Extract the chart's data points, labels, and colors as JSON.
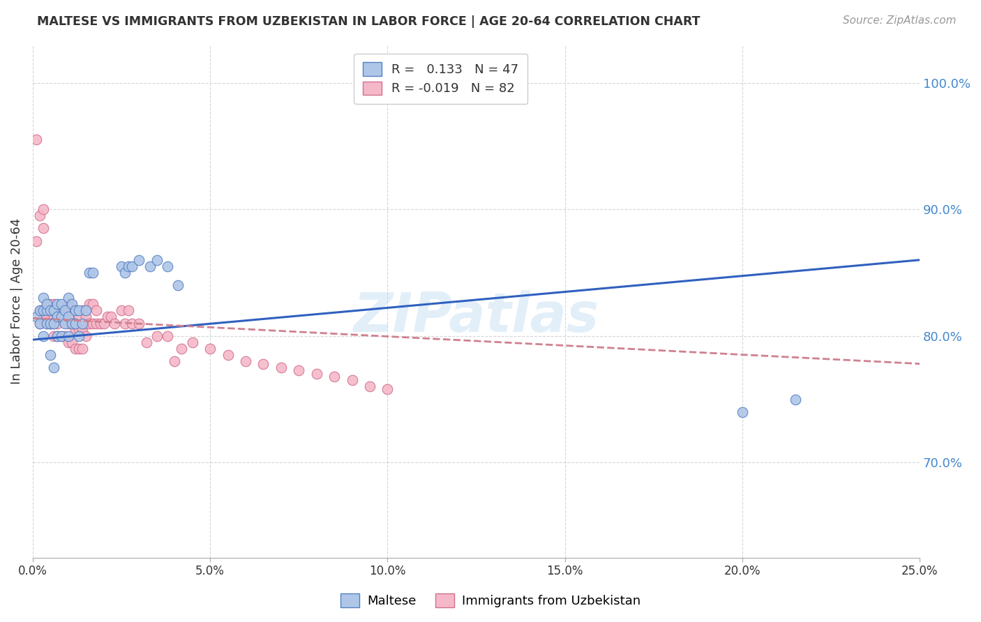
{
  "title": "MALTESE VS IMMIGRANTS FROM UZBEKISTAN IN LABOR FORCE | AGE 20-64 CORRELATION CHART",
  "source": "Source: ZipAtlas.com",
  "ylabel": "In Labor Force | Age 20-64",
  "x_range": [
    0.0,
    0.25
  ],
  "y_range": [
    0.625,
    1.03
  ],
  "blue_R": "0.133",
  "blue_N": "47",
  "pink_R": "-0.019",
  "pink_N": "82",
  "blue_color": "#aec6e8",
  "pink_color": "#f5b8c8",
  "blue_edge_color": "#5580c0",
  "pink_edge_color": "#d07090",
  "blue_line_color": "#3060c0",
  "pink_line_color": "#d08090",
  "watermark": "ZIPatlas",
  "blue_points_x": [
    0.001,
    0.002,
    0.002,
    0.003,
    0.003,
    0.003,
    0.004,
    0.004,
    0.004,
    0.005,
    0.005,
    0.005,
    0.006,
    0.006,
    0.006,
    0.007,
    0.007,
    0.007,
    0.008,
    0.008,
    0.008,
    0.009,
    0.009,
    0.01,
    0.01,
    0.01,
    0.011,
    0.011,
    0.012,
    0.012,
    0.013,
    0.013,
    0.014,
    0.015,
    0.016,
    0.017,
    0.025,
    0.026,
    0.027,
    0.028,
    0.03,
    0.033,
    0.035,
    0.038,
    0.041,
    0.2,
    0.215
  ],
  "blue_points_y": [
    0.815,
    0.81,
    0.82,
    0.8,
    0.82,
    0.83,
    0.81,
    0.82,
    0.825,
    0.785,
    0.81,
    0.82,
    0.775,
    0.81,
    0.82,
    0.8,
    0.815,
    0.825,
    0.8,
    0.815,
    0.825,
    0.81,
    0.82,
    0.8,
    0.815,
    0.83,
    0.81,
    0.825,
    0.81,
    0.82,
    0.8,
    0.82,
    0.81,
    0.82,
    0.85,
    0.85,
    0.855,
    0.85,
    0.855,
    0.855,
    0.86,
    0.855,
    0.86,
    0.855,
    0.84,
    0.74,
    0.75
  ],
  "pink_points_x": [
    0.001,
    0.001,
    0.002,
    0.002,
    0.002,
    0.003,
    0.003,
    0.003,
    0.004,
    0.004,
    0.004,
    0.004,
    0.005,
    0.005,
    0.005,
    0.005,
    0.006,
    0.006,
    0.006,
    0.006,
    0.007,
    0.007,
    0.007,
    0.007,
    0.008,
    0.008,
    0.008,
    0.009,
    0.009,
    0.009,
    0.01,
    0.01,
    0.01,
    0.01,
    0.011,
    0.011,
    0.011,
    0.012,
    0.012,
    0.012,
    0.013,
    0.013,
    0.013,
    0.014,
    0.014,
    0.014,
    0.015,
    0.015,
    0.015,
    0.016,
    0.016,
    0.017,
    0.017,
    0.018,
    0.018,
    0.019,
    0.02,
    0.021,
    0.022,
    0.023,
    0.025,
    0.026,
    0.027,
    0.028,
    0.03,
    0.032,
    0.035,
    0.038,
    0.04,
    0.042,
    0.045,
    0.05,
    0.055,
    0.06,
    0.065,
    0.07,
    0.075,
    0.08,
    0.085,
    0.09,
    0.095,
    0.1
  ],
  "pink_points_y": [
    0.955,
    0.875,
    0.895,
    0.82,
    0.81,
    0.885,
    0.9,
    0.815,
    0.82,
    0.815,
    0.825,
    0.81,
    0.81,
    0.82,
    0.825,
    0.81,
    0.8,
    0.815,
    0.825,
    0.81,
    0.8,
    0.815,
    0.82,
    0.81,
    0.8,
    0.815,
    0.82,
    0.8,
    0.815,
    0.82,
    0.795,
    0.81,
    0.82,
    0.825,
    0.795,
    0.81,
    0.82,
    0.79,
    0.805,
    0.82,
    0.79,
    0.805,
    0.815,
    0.79,
    0.805,
    0.82,
    0.8,
    0.81,
    0.815,
    0.825,
    0.81,
    0.81,
    0.825,
    0.81,
    0.82,
    0.81,
    0.81,
    0.815,
    0.815,
    0.81,
    0.82,
    0.81,
    0.82,
    0.81,
    0.81,
    0.795,
    0.8,
    0.8,
    0.78,
    0.79,
    0.795,
    0.79,
    0.785,
    0.78,
    0.778,
    0.775,
    0.773,
    0.77,
    0.768,
    0.765,
    0.76,
    0.758
  ],
  "blue_trend_x0": 0.0,
  "blue_trend_y0": 0.797,
  "blue_trend_x1": 0.25,
  "blue_trend_y1": 0.86,
  "pink_trend_x0": 0.0,
  "pink_trend_y0": 0.814,
  "pink_trend_x1": 0.25,
  "pink_trend_y1": 0.778
}
